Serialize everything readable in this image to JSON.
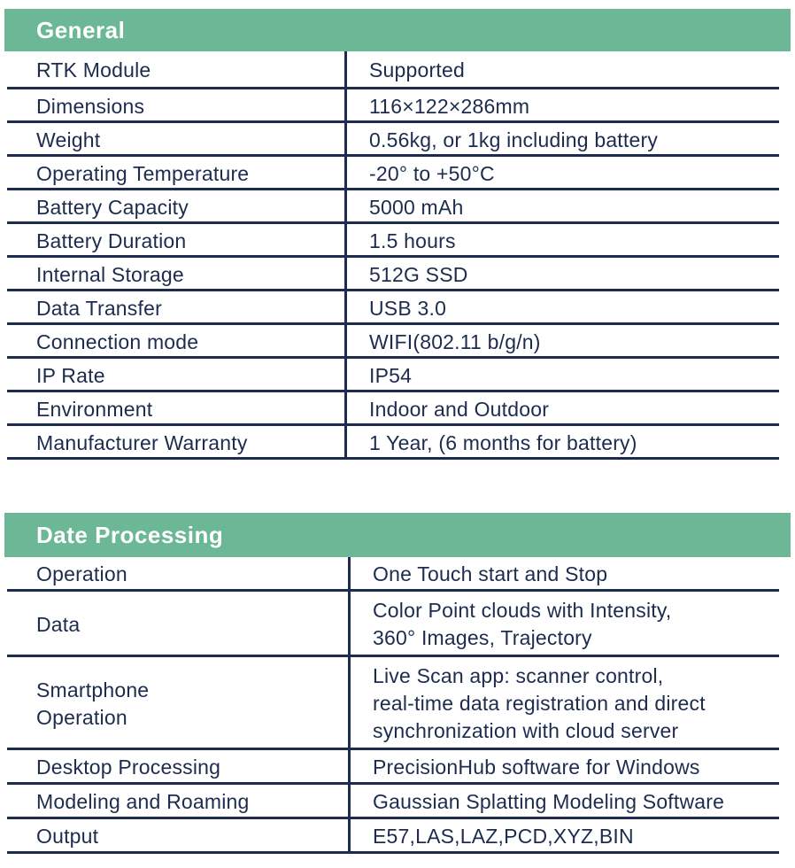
{
  "theme": {
    "accent_green": "#6cb795",
    "navy_text": "#1d2c4e",
    "header_text_color": "#ffffff",
    "background": "#ffffff"
  },
  "sections": [
    {
      "title": "General",
      "rows": [
        {
          "label": "RTK Module",
          "value": "Supported"
        },
        {
          "label": "Dimensions",
          "value": "116×122×286mm"
        },
        {
          "label": "Weight",
          "value": "0.56kg, or 1kg including battery"
        },
        {
          "label": "Operating Temperature",
          "value": "-20° to +50°C"
        },
        {
          "label": "Battery Capacity",
          "value": "5000 mAh"
        },
        {
          "label": "Battery Duration",
          "value": "1.5 hours"
        },
        {
          "label": "Internal Storage",
          "value": "512G SSD"
        },
        {
          "label": "Data Transfer",
          "value": "USB 3.0"
        },
        {
          "label": "Connection mode",
          "value": "WIFI(802.11 b/g/n)"
        },
        {
          "label": "IP Rate",
          "value": "IP54"
        },
        {
          "label": "Environment",
          "value": "Indoor and Outdoor"
        },
        {
          "label": "Manufacturer Warranty",
          "value": "1 Year, (6 months for battery)"
        }
      ]
    },
    {
      "title": "Date Processing",
      "rows": [
        {
          "label": "Operation",
          "value": "One Touch start and Stop"
        },
        {
          "label": "Data",
          "value": "Color Point clouds with Intensity,\n360° Images, Trajectory"
        },
        {
          "label": "Smartphone\nOperation",
          "value": "Live Scan app: scanner control,\nreal-time data registration and direct\nsynchronization with cloud server"
        },
        {
          "label": "Desktop Processing",
          "value": "PrecisionHub software for Windows"
        },
        {
          "label": "Modeling and Roaming",
          "value": "Gaussian Splatting Modeling Software"
        },
        {
          "label": "Output",
          "value": "E57,LAS,LAZ,PCD,XYZ,BIN"
        }
      ]
    }
  ]
}
